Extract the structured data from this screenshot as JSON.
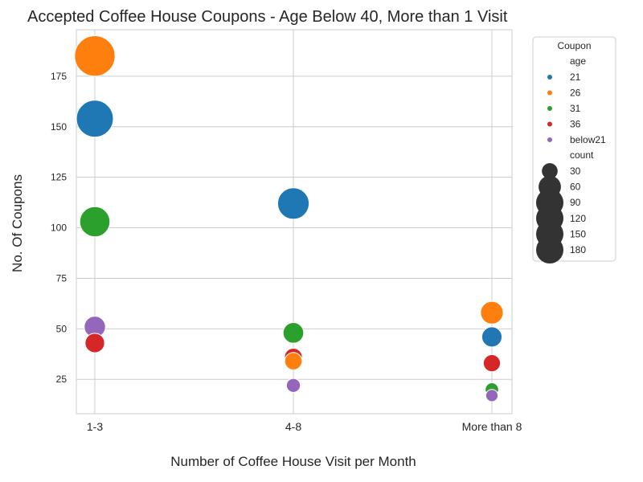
{
  "chart_data": {
    "type": "scatter",
    "title": "Accepted Coffee House Coupons - Age Below 40, More than 1 Visit",
    "xlabel": "Number of Coffee House Visit per Month",
    "ylabel": "No. Of Coupons",
    "categories": [
      "1-3",
      "4-8",
      "More than 8"
    ],
    "ylim": [
      8,
      198
    ],
    "yticks": [
      25,
      50,
      75,
      100,
      125,
      150,
      175
    ],
    "grid": true,
    "legend": {
      "title": "Coupon",
      "position": "upper-right outside",
      "hue_title": "age",
      "size_title": "count",
      "size_entries": [
        30,
        60,
        90,
        120,
        150,
        180
      ]
    },
    "colors": {
      "21": "#1f77b4",
      "26": "#ff7f0e",
      "31": "#2ca02c",
      "36": "#d62728",
      "below21": "#9467bd",
      "size_legend": "#333333",
      "grid": "#cccccc",
      "axis_text": "#262626"
    },
    "series": [
      {
        "name": "21",
        "values": [
          154,
          112,
          46
        ]
      },
      {
        "name": "26",
        "values": [
          185,
          34,
          58
        ]
      },
      {
        "name": "31",
        "values": [
          103,
          48,
          20
        ]
      },
      {
        "name": "36",
        "values": [
          43,
          36,
          33
        ]
      },
      {
        "name": "below21",
        "values": [
          51,
          22,
          17
        ]
      }
    ]
  }
}
